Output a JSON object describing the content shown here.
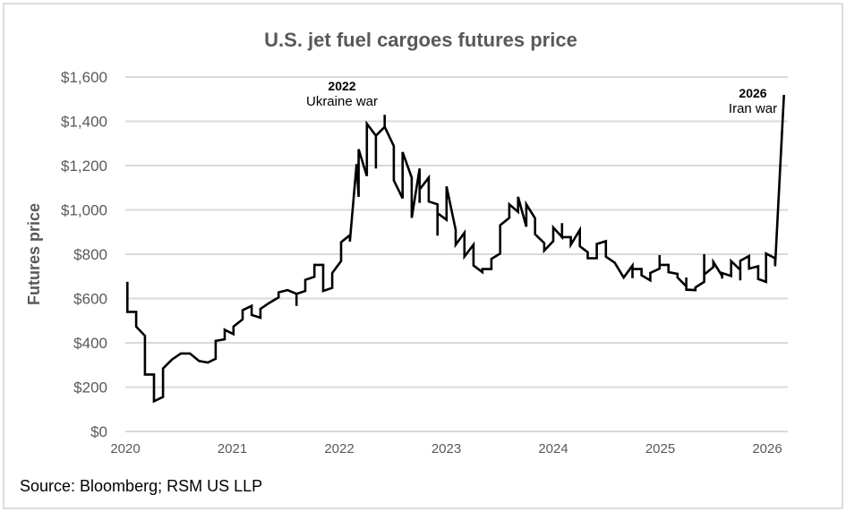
{
  "chart_data": {
    "type": "line",
    "title": "U.S. jet fuel cargoes futures price",
    "xlabel": "",
    "ylabel": "Futures price",
    "ylim": [
      0,
      1600
    ],
    "xlim": [
      "2020-01-01",
      "2026-03-15"
    ],
    "grid": true,
    "y_ticks": [
      "$0",
      "$200",
      "$400",
      "$600",
      "$800",
      "$1,000",
      "$1,200",
      "$1,400",
      "$1,600"
    ],
    "y_tick_values": [
      0,
      200,
      400,
      600,
      800,
      1000,
      1200,
      1400,
      1600
    ],
    "x_ticks": [
      "2020",
      "2021",
      "2022",
      "2023",
      "2024",
      "2025",
      "2026"
    ],
    "line_color": "#000000",
    "annotations": [
      {
        "year": "2022",
        "label": "Ukraine war"
      },
      {
        "year": "2026",
        "label": "Iran war"
      }
    ],
    "series": [
      {
        "points": [
          [
            "2020-01-08",
            675
          ],
          [
            "2020-01-08",
            540
          ],
          [
            "2020-02-07",
            540
          ],
          [
            "2020-02-07",
            473
          ],
          [
            "2020-03-08",
            432
          ],
          [
            "2020-03-08",
            257
          ],
          [
            "2020-04-08",
            257
          ],
          [
            "2020-04-08",
            136
          ],
          [
            "2020-05-09",
            156
          ],
          [
            "2020-05-09",
            284
          ],
          [
            "2020-06-09",
            325
          ],
          [
            "2020-07-09",
            352
          ],
          [
            "2020-08-09",
            352
          ],
          [
            "2020-09-09",
            318
          ],
          [
            "2020-10-09",
            311
          ],
          [
            "2020-11-05",
            328
          ],
          [
            "2020-11-05",
            409
          ],
          [
            "2020-12-06",
            416
          ],
          [
            "2020-12-06",
            459
          ],
          [
            "2021-01-05",
            439
          ],
          [
            "2021-01-05",
            473
          ],
          [
            "2021-02-05",
            506
          ],
          [
            "2021-02-05",
            547
          ],
          [
            "2021-03-08",
            567
          ],
          [
            "2021-03-08",
            526
          ],
          [
            "2021-04-07",
            513
          ],
          [
            "2021-04-07",
            553
          ],
          [
            "2021-05-08",
            581
          ],
          [
            "2021-06-08",
            605
          ],
          [
            "2021-06-08",
            628
          ],
          [
            "2021-07-08",
            638
          ],
          [
            "2021-08-08",
            621
          ],
          [
            "2021-08-08",
            567
          ],
          [
            "2021-08-08",
            621
          ],
          [
            "2021-09-07",
            634
          ],
          [
            "2021-09-07",
            684
          ],
          [
            "2021-10-08",
            698
          ],
          [
            "2021-10-08",
            752
          ],
          [
            "2021-11-07",
            752
          ],
          [
            "2021-11-07",
            634
          ],
          [
            "2021-12-08",
            648
          ],
          [
            "2021-12-08",
            715
          ],
          [
            "2022-01-07",
            769
          ],
          [
            "2022-01-07",
            854
          ],
          [
            "2022-02-06",
            886
          ],
          [
            "2022-02-06",
            857
          ],
          [
            "2022-03-01",
            1207
          ],
          [
            "2022-03-08",
            1059
          ],
          [
            "2022-03-08",
            1274
          ],
          [
            "2022-04-05",
            1153
          ],
          [
            "2022-04-05",
            1389
          ],
          [
            "2022-05-06",
            1335
          ],
          [
            "2022-05-06",
            1187
          ],
          [
            "2022-05-06",
            1335
          ],
          [
            "2022-06-05",
            1375
          ],
          [
            "2022-06-05",
            1429
          ],
          [
            "2022-06-05",
            1375
          ],
          [
            "2022-07-06",
            1288
          ],
          [
            "2022-07-06",
            1133
          ],
          [
            "2022-08-05",
            1052
          ],
          [
            "2022-08-05",
            1261
          ],
          [
            "2022-09-05",
            1146
          ],
          [
            "2022-09-05",
            964
          ],
          [
            "2022-10-02",
            1187
          ],
          [
            "2022-10-02",
            1032
          ],
          [
            "2022-10-02",
            1092
          ],
          [
            "2022-11-02",
            1146
          ],
          [
            "2022-11-02",
            1038
          ],
          [
            "2022-12-02",
            1025
          ],
          [
            "2022-12-02",
            884
          ],
          [
            "2022-12-02",
            985
          ],
          [
            "2023-01-02",
            955
          ],
          [
            "2023-01-02",
            1106
          ],
          [
            "2023-02-02",
            910
          ],
          [
            "2023-02-02",
            843
          ],
          [
            "2023-03-04",
            897
          ],
          [
            "2023-03-04",
            789
          ],
          [
            "2023-04-04",
            843
          ],
          [
            "2023-04-04",
            749
          ],
          [
            "2023-05-04",
            719
          ],
          [
            "2023-05-04",
            733
          ],
          [
            "2023-06-04",
            733
          ],
          [
            "2023-06-04",
            779
          ],
          [
            "2023-07-04",
            803
          ],
          [
            "2023-07-04",
            931
          ],
          [
            "2023-08-04",
            964
          ],
          [
            "2023-08-04",
            1025
          ],
          [
            "2023-09-03",
            991
          ],
          [
            "2023-09-03",
            1059
          ],
          [
            "2023-10-01",
            924
          ],
          [
            "2023-10-01",
            1025
          ],
          [
            "2023-10-31",
            962
          ],
          [
            "2023-10-31",
            890
          ],
          [
            "2023-12-01",
            850
          ],
          [
            "2023-12-01",
            816
          ],
          [
            "2024-01-01",
            859
          ],
          [
            "2024-01-01",
            921
          ],
          [
            "2024-01-31",
            877
          ],
          [
            "2024-01-31",
            940
          ],
          [
            "2024-01-31",
            877
          ],
          [
            "2024-03-01",
            877
          ],
          [
            "2024-03-01",
            843
          ],
          [
            "2024-04-01",
            910
          ],
          [
            "2024-04-01",
            836
          ],
          [
            "2024-04-28",
            809
          ],
          [
            "2024-04-28",
            782
          ],
          [
            "2024-05-29",
            782
          ],
          [
            "2024-05-29",
            846
          ],
          [
            "2024-06-29",
            859
          ],
          [
            "2024-06-29",
            789
          ],
          [
            "2024-07-29",
            762
          ],
          [
            "2024-08-29",
            695
          ],
          [
            "2024-09-28",
            749
          ],
          [
            "2024-09-28",
            692
          ],
          [
            "2024-09-28",
            733
          ],
          [
            "2024-10-29",
            733
          ],
          [
            "2024-10-29",
            705
          ],
          [
            "2024-11-28",
            682
          ],
          [
            "2024-11-28",
            715
          ],
          [
            "2024-12-30",
            735
          ],
          [
            "2024-12-30",
            796
          ],
          [
            "2024-12-30",
            752
          ],
          [
            "2025-01-29",
            752
          ],
          [
            "2025-01-29",
            719
          ],
          [
            "2025-03-01",
            711
          ],
          [
            "2025-03-01",
            695
          ],
          [
            "2025-03-31",
            655
          ],
          [
            "2025-03-31",
            695
          ],
          [
            "2025-03-31",
            640
          ],
          [
            "2025-05-01",
            638
          ],
          [
            "2025-05-01",
            650
          ],
          [
            "2025-05-31",
            675
          ],
          [
            "2025-05-31",
            800
          ],
          [
            "2025-05-31",
            708
          ],
          [
            "2025-07-01",
            742
          ],
          [
            "2025-07-01",
            765
          ],
          [
            "2025-07-31",
            702
          ],
          [
            "2025-07-31",
            690
          ],
          [
            "2025-07-31",
            715
          ],
          [
            "2025-08-31",
            702
          ],
          [
            "2025-08-31",
            769
          ],
          [
            "2025-10-01",
            729
          ],
          [
            "2025-10-01",
            682
          ],
          [
            "2025-10-01",
            770
          ],
          [
            "2025-10-31",
            792
          ],
          [
            "2025-10-31",
            735
          ],
          [
            "2025-12-01",
            746
          ],
          [
            "2025-12-01",
            688
          ],
          [
            "2025-12-28",
            675
          ],
          [
            "2025-12-28",
            803
          ],
          [
            "2026-01-28",
            782
          ],
          [
            "2026-01-28",
            746
          ],
          [
            "2026-02-27",
            1519
          ]
        ]
      }
    ]
  },
  "source": "Source: Bloomberg; RSM US LLP"
}
